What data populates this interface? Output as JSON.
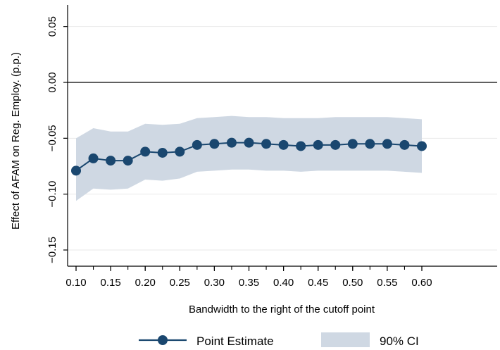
{
  "chart_data": {
    "type": "line",
    "title": "",
    "xlabel": "Bandwidth to the right of the cutoff point",
    "ylabel": "Effect of AFAM on Reg. Employ. (p.p.)",
    "xlim": [
      0.1,
      0.6
    ],
    "ylim": [
      -0.17,
      0.065
    ],
    "x_ticks": [
      0.1,
      0.15,
      0.2,
      0.25,
      0.3,
      0.35,
      0.4,
      0.45,
      0.5,
      0.55,
      0.6
    ],
    "x_tick_labels": [
      "0.10",
      "0.15",
      "0.20",
      "0.25",
      "0.30",
      "0.35",
      "0.40",
      "0.45",
      "0.50",
      "0.55",
      "0.60"
    ],
    "y_ticks": [
      0.05,
      0.0,
      -0.05,
      -0.1,
      -0.15
    ],
    "y_tick_labels": [
      "0.05",
      "0.00",
      "−0.05",
      "−0.10",
      "−0.15"
    ],
    "reference_line": 0,
    "grid": true,
    "legend_position": "bottom",
    "x": [
      0.1,
      0.125,
      0.15,
      0.175,
      0.2,
      0.225,
      0.25,
      0.275,
      0.3,
      0.325,
      0.35,
      0.375,
      0.4,
      0.425,
      0.45,
      0.475,
      0.5,
      0.525,
      0.55,
      0.575,
      0.6
    ],
    "series": [
      {
        "name": "Point Estimate",
        "color": "#1a476f",
        "values": [
          -0.079,
          -0.068,
          -0.07,
          -0.07,
          -0.062,
          -0.063,
          -0.062,
          -0.056,
          -0.055,
          -0.054,
          -0.054,
          -0.055,
          -0.056,
          -0.057,
          -0.056,
          -0.056,
          -0.055,
          -0.055,
          -0.055,
          -0.056,
          -0.057
        ]
      },
      {
        "name": "90% CI",
        "color": "#cfd8e3",
        "lower": [
          -0.106,
          -0.095,
          -0.096,
          -0.095,
          -0.087,
          -0.088,
          -0.086,
          -0.08,
          -0.079,
          -0.078,
          -0.078,
          -0.079,
          -0.079,
          -0.08,
          -0.079,
          -0.079,
          -0.079,
          -0.079,
          -0.079,
          -0.08,
          -0.081
        ],
        "upper": [
          -0.05,
          -0.041,
          -0.044,
          -0.044,
          -0.037,
          -0.038,
          -0.037,
          -0.032,
          -0.031,
          -0.03,
          -0.031,
          -0.031,
          -0.032,
          -0.032,
          -0.032,
          -0.031,
          -0.031,
          -0.031,
          -0.031,
          -0.032,
          -0.033
        ]
      }
    ]
  }
}
